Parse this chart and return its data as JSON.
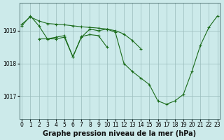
{
  "background_color": "#cceaea",
  "plot_bg_color": "#cceaea",
  "line_color": "#1a6b1a",
  "grid_color": "#99bbbb",
  "xlabel": "Graphe pression niveau de la mer (hPa)",
  "xlabel_fontsize": 7,
  "tick_fontsize": 5.5,
  "ylim": [
    1016.3,
    1019.85
  ],
  "yticks": [
    1017,
    1018,
    1019
  ],
  "xlim": [
    -0.3,
    23.3
  ],
  "xticks": [
    0,
    1,
    2,
    3,
    4,
    5,
    6,
    7,
    8,
    9,
    10,
    11,
    12,
    13,
    14,
    15,
    16,
    17,
    18,
    19,
    20,
    21,
    22,
    23
  ],
  "series1_x": [
    0,
    1,
    2,
    3,
    4,
    5,
    6,
    7,
    8,
    9,
    10,
    11,
    12,
    13,
    14,
    15,
    16,
    17,
    18,
    19,
    20,
    21,
    22,
    23
  ],
  "series1_y": [
    1019.15,
    1019.45,
    1019.15,
    1018.75,
    1018.75,
    1018.8,
    1018.2,
    1018.8,
    1019.05,
    1019.0,
    1019.05,
    1018.95,
    1018.0,
    1017.75,
    1017.55,
    1017.35,
    1016.85,
    1016.75,
    1016.85,
    1017.05,
    1017.75,
    1018.55,
    1019.1,
    1019.45
  ],
  "series2_x": [
    0,
    1,
    2,
    3,
    4,
    5,
    6,
    7,
    8,
    9,
    10,
    11,
    12,
    13,
    14
  ],
  "series2_y": [
    1019.2,
    1019.42,
    1019.3,
    1019.22,
    1019.2,
    1019.18,
    1019.15,
    1019.12,
    1019.1,
    1019.08,
    1019.05,
    1019.0,
    1018.9,
    1018.7,
    1018.45
  ],
  "series3_x": [
    2,
    3,
    4,
    5,
    6,
    7,
    8,
    9,
    10
  ],
  "series3_y": [
    1018.75,
    1018.75,
    1018.8,
    1018.85,
    1018.2,
    1018.82,
    1018.88,
    1018.85,
    1018.5
  ]
}
